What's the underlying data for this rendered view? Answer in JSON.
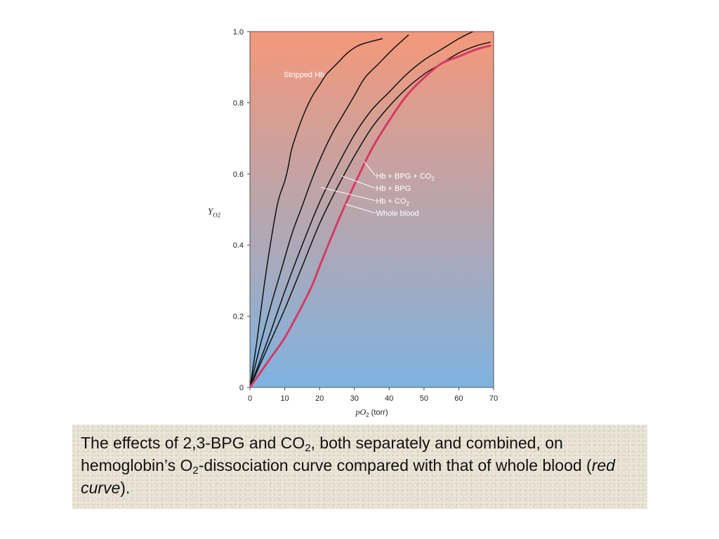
{
  "chart_data": {
    "type": "line",
    "xlabel": {
      "main": "pO",
      "sub": "2",
      "unit": " (torr)"
    },
    "ylabel": {
      "main": "Y",
      "sub": "O2"
    },
    "xlim": [
      0,
      70
    ],
    "ylim": [
      0,
      1.0
    ],
    "x_ticks": [
      "0",
      "10",
      "20",
      "30",
      "40",
      "50",
      "60",
      "70"
    ],
    "y_ticks": [
      "0",
      "0.2",
      "0.4",
      "0.6",
      "0.8",
      "1.0"
    ],
    "background_gradient": {
      "top": "#f4987a",
      "bottom": "#7eb3e0"
    },
    "series": [
      {
        "name": "Stripped Hb",
        "color": "#111111",
        "emphasis": false,
        "x": [
          0,
          2,
          4,
          6,
          8,
          10,
          11,
          12,
          14,
          16,
          18,
          20,
          22,
          25,
          28,
          31,
          34,
          38
        ],
        "y": [
          0,
          0.13,
          0.28,
          0.41,
          0.52,
          0.58,
          0.62,
          0.67,
          0.73,
          0.78,
          0.82,
          0.85,
          0.88,
          0.91,
          0.94,
          0.96,
          0.97,
          0.98
        ]
      },
      {
        "name": "Hb + BPG + CO2",
        "color": "#111111",
        "emphasis": false,
        "x": [
          0,
          3,
          6,
          9,
          12,
          15,
          18,
          21,
          24,
          27,
          30,
          33,
          37,
          41,
          45.5
        ],
        "y": [
          0,
          0.12,
          0.23,
          0.33,
          0.43,
          0.51,
          0.59,
          0.66,
          0.72,
          0.77,
          0.82,
          0.87,
          0.91,
          0.95,
          0.99
        ]
      },
      {
        "name": "Hb + BPG",
        "color": "#111111",
        "emphasis": false,
        "x": [
          0,
          5,
          10,
          15,
          20,
          25,
          30,
          35,
          40,
          45,
          50,
          55,
          60,
          64
        ],
        "y": [
          0,
          0.13,
          0.27,
          0.4,
          0.52,
          0.62,
          0.71,
          0.78,
          0.83,
          0.88,
          0.92,
          0.95,
          0.98,
          1.0
        ]
      },
      {
        "name": "Hb + CO2",
        "color": "#111111",
        "emphasis": false,
        "x": [
          0,
          5,
          10,
          15,
          20,
          25,
          30,
          35,
          40,
          45,
          50,
          55,
          60,
          65,
          69
        ],
        "y": [
          0,
          0.11,
          0.22,
          0.34,
          0.46,
          0.56,
          0.65,
          0.73,
          0.79,
          0.84,
          0.88,
          0.91,
          0.94,
          0.96,
          0.97
        ]
      },
      {
        "name": "Whole blood",
        "color": "#d63a63",
        "emphasis": true,
        "x": [
          0,
          5,
          10,
          15,
          18,
          20,
          25,
          30,
          35,
          40,
          45,
          50,
          55,
          60,
          65,
          69
        ],
        "y": [
          0,
          0.07,
          0.14,
          0.23,
          0.29,
          0.34,
          0.46,
          0.57,
          0.67,
          0.75,
          0.82,
          0.87,
          0.91,
          0.93,
          0.95,
          0.96
        ]
      }
    ],
    "annotations": [
      {
        "text": "Stripped Hb",
        "sub": "",
        "x": 9.7,
        "y": 0.88,
        "leader": null
      },
      {
        "text": "Hb + BPG + CO",
        "sub": "2",
        "x": 36.2,
        "y": 0.595,
        "leader": [
          [
            32.8,
            0.635
          ],
          [
            36.0,
            0.595
          ]
        ]
      },
      {
        "text": "Hb + BPG",
        "sub": "",
        "x": 36.2,
        "y": 0.56,
        "leader": [
          [
            26.2,
            0.595
          ],
          [
            36.0,
            0.56
          ]
        ]
      },
      {
        "text": "Hb + CO",
        "sub": "2",
        "x": 36.2,
        "y": 0.525,
        "leader": [
          [
            20.4,
            0.562
          ],
          [
            36.0,
            0.525
          ]
        ]
      },
      {
        "text": "Whole blood",
        "sub": "",
        "x": 36.2,
        "y": 0.49,
        "leader": [
          [
            27.4,
            0.515
          ],
          [
            36.0,
            0.49
          ]
        ]
      }
    ]
  },
  "caption": {
    "part1": "The effects of 2,3-BPG and CO",
    "sub1": "2",
    "part2": ", both separately and combined, on hemoglobin’s O",
    "sub2": "2",
    "part3": "-dissociation curve compared with that of whole blood (",
    "italic": "red curve",
    "part4": ")."
  }
}
